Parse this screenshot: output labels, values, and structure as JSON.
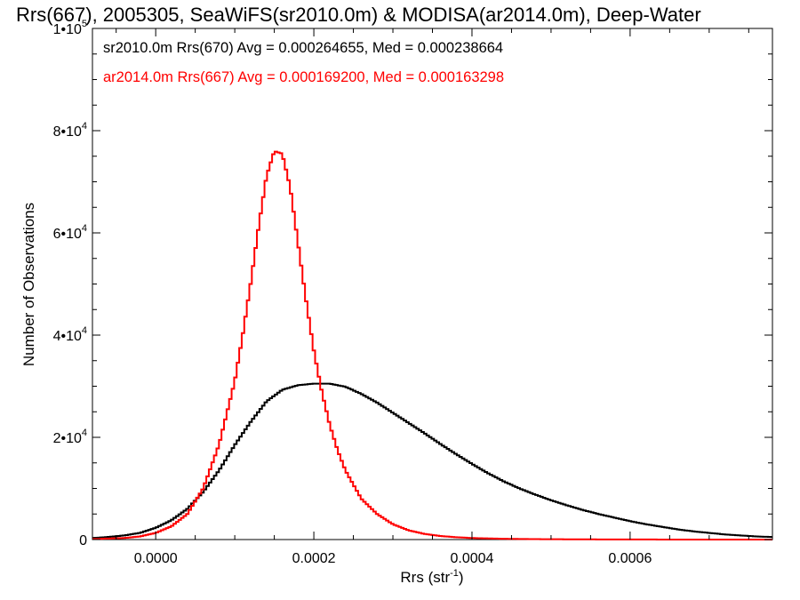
{
  "chart_data": {
    "type": "line",
    "title": "Rrs(667), 2005305, SeaWiFS(sr2010.0m) & MODISA(ar2014.0m), Deep-Water",
    "xlabel": "Rrs (str",
    "xlabel_sup": "-1",
    "xlabel_suffix": ")",
    "ylabel": "Number of Observations",
    "xlim": [
      -8e-05,
      0.00078
    ],
    "ylim": [
      0,
      100000
    ],
    "x_ticks": [
      {
        "value": 0.0,
        "label": "0.0000"
      },
      {
        "value": 0.0002,
        "label": "0.0002"
      },
      {
        "value": 0.0004,
        "label": "0.0004"
      },
      {
        "value": 0.0006,
        "label": "0.0006"
      }
    ],
    "y_ticks": [
      {
        "value": 0,
        "label": "0",
        "sup": ""
      },
      {
        "value": 20000,
        "label": "2•10",
        "sup": "4"
      },
      {
        "value": 40000,
        "label": "4•10",
        "sup": "4"
      },
      {
        "value": 60000,
        "label": "6•10",
        "sup": "4"
      },
      {
        "value": 80000,
        "label": "8•10",
        "sup": "4"
      },
      {
        "value": 100000,
        "label": "1•10",
        "sup": "5"
      }
    ],
    "legend": [
      {
        "text": "sr2010.0m Rrs(670) Avg = 0.000264655, Med = 0.000238664",
        "color": "#000000"
      },
      {
        "text": "ar2014.0m Rrs(667) Avg = 0.000169200, Med = 0.000163298",
        "color": "#ff0000"
      }
    ],
    "series": [
      {
        "color": "#000000",
        "x": [
          -8e-05,
          -6e-05,
          -4e-05,
          -2e-05,
          0.0,
          2e-05,
          4e-05,
          6e-05,
          8e-05,
          0.0001,
          0.00012,
          0.00014,
          0.00016,
          0.00018,
          0.0002,
          0.00022,
          0.00024,
          0.00026,
          0.00028,
          0.0003,
          0.00032,
          0.00034,
          0.00036,
          0.00038,
          0.0004,
          0.00042,
          0.00044,
          0.00046,
          0.00048,
          0.0005,
          0.00052,
          0.00054,
          0.00056,
          0.00058,
          0.0006,
          0.00062,
          0.00064,
          0.00066,
          0.00068,
          0.0007,
          0.00072,
          0.00074,
          0.00076,
          0.00078
        ],
        "values": [
          300,
          500,
          800,
          1300,
          2300,
          3800,
          6000,
          9300,
          13500,
          18500,
          23000,
          27000,
          29300,
          30200,
          30500,
          30500,
          29900,
          28500,
          26800,
          24800,
          22800,
          20800,
          18700,
          16700,
          14800,
          13000,
          11400,
          10000,
          8800,
          7700,
          6700,
          5800,
          5000,
          4300,
          3600,
          3000,
          2500,
          2000,
          1600,
          1300,
          1000,
          800,
          600,
          500
        ]
      },
      {
        "color": "#ff0000",
        "x": [
          -8e-05,
          -6e-05,
          -4e-05,
          -2e-05,
          0.0,
          2e-05,
          4e-05,
          6e-05,
          8e-05,
          0.0001,
          0.00011,
          0.00012,
          0.00013,
          0.00014,
          0.00015,
          0.00016,
          0.00017,
          0.00018,
          0.00019,
          0.0002,
          0.00021,
          0.00022,
          0.00023,
          0.00024,
          0.00026,
          0.00028,
          0.0003,
          0.00032,
          0.00034,
          0.00036,
          0.00038,
          0.0004,
          0.00044,
          0.00048,
          0.00052,
          0.00056,
          0.0006,
          0.00064,
          0.00068,
          0.00072,
          0.00076,
          0.00078
        ],
        "values": [
          100,
          200,
          300,
          600,
          1300,
          2600,
          5000,
          10000,
          18500,
          31000,
          40000,
          50000,
          61000,
          71000,
          76000,
          75500,
          69000,
          58000,
          47000,
          37000,
          29000,
          22500,
          17500,
          13500,
          8000,
          5000,
          3000,
          1800,
          1100,
          700,
          450,
          300,
          150,
          80,
          50,
          30,
          20,
          10,
          5,
          3,
          2,
          0
        ]
      }
    ]
  }
}
